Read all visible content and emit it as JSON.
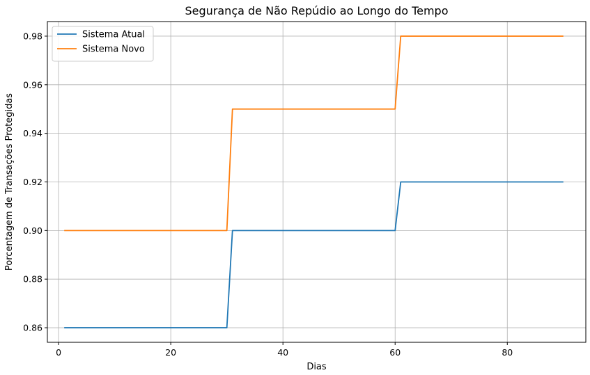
{
  "chart_data": {
    "type": "line",
    "title": "Segurança de Não Repúdio ao Longo do Tempo",
    "xlabel": "Dias",
    "ylabel": "Porcentagem de Transações Protegidas",
    "xlim": [
      -2,
      94
    ],
    "ylim": [
      0.854,
      0.986
    ],
    "xticks": [
      0,
      20,
      40,
      60,
      80
    ],
    "yticks": [
      0.86,
      0.88,
      0.9,
      0.92,
      0.94,
      0.96,
      0.98
    ],
    "xtick_labels": [
      "0",
      "20",
      "40",
      "60",
      "80"
    ],
    "ytick_labels": [
      "0.86",
      "0.88",
      "0.90",
      "0.92",
      "0.94",
      "0.96",
      "0.98"
    ],
    "grid": true,
    "legend_position": "top-left",
    "series": [
      {
        "name": "Sistema Atual",
        "color": "#1f77b4",
        "x": [
          1,
          30,
          31,
          60,
          61,
          90
        ],
        "y": [
          0.86,
          0.86,
          0.9,
          0.9,
          0.92,
          0.92
        ]
      },
      {
        "name": "Sistema Novo",
        "color": "#ff7f0e",
        "x": [
          1,
          30,
          31,
          60,
          61,
          90
        ],
        "y": [
          0.9,
          0.9,
          0.95,
          0.95,
          0.98,
          0.98
        ]
      }
    ]
  }
}
